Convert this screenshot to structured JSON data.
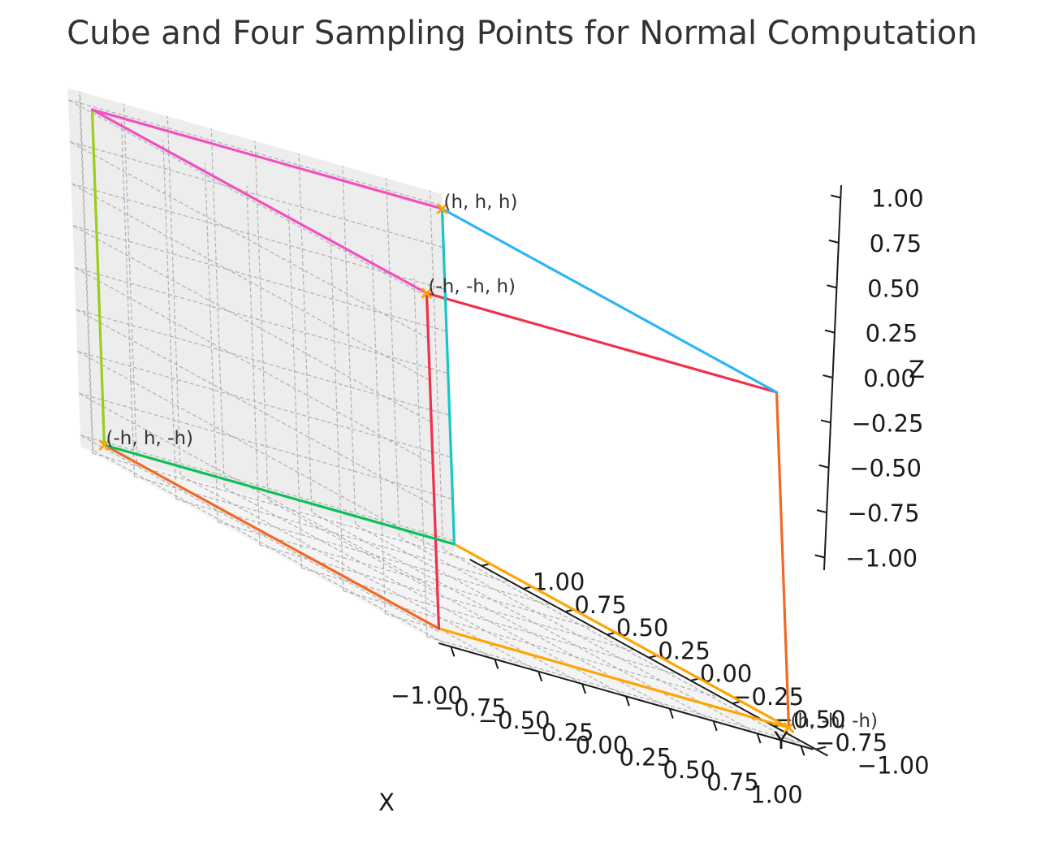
{
  "chart_data": {
    "type": "3d-line",
    "title": "Cube and Four Sampling Points for Normal Computation",
    "xlabel": "X",
    "ylabel": "Y",
    "zlabel": "Z",
    "xlim": [
      -1.0,
      1.0
    ],
    "ylim": [
      -1.0,
      1.0
    ],
    "zlim": [
      -1.0,
      1.0
    ],
    "grid": true,
    "x_ticks": [
      "−1.00",
      "−0.75",
      "−0.50",
      "−0.25",
      "0.00",
      "0.25",
      "0.50",
      "0.75",
      "1.00"
    ],
    "y_ticks": [
      "−1.00",
      "−0.75",
      "−0.50",
      "−0.25",
      "0.00",
      "0.25",
      "0.50",
      "0.75",
      "1.00"
    ],
    "z_ticks": [
      "−1.00",
      "−0.75",
      "−0.50",
      "−0.25",
      "0.00",
      "0.25",
      "0.50",
      "0.75",
      "1.00"
    ],
    "h": 1.0,
    "edges": [
      {
        "from": [
          -1,
          -1,
          -1
        ],
        "to": [
          1,
          -1,
          -1
        ],
        "color": "#ffa500"
      },
      {
        "from": [
          -1,
          -1,
          -1
        ],
        "to": [
          -1,
          1,
          -1
        ],
        "color": "#f06925"
      },
      {
        "from": [
          -1,
          -1,
          -1
        ],
        "to": [
          -1,
          -1,
          1
        ],
        "color": "#f0304c"
      },
      {
        "from": [
          1,
          -1,
          -1
        ],
        "to": [
          1,
          1,
          -1
        ],
        "color": "#ffa500"
      },
      {
        "from": [
          1,
          -1,
          -1
        ],
        "to": [
          1,
          -1,
          1
        ],
        "color": "#f06925"
      },
      {
        "from": [
          -1,
          1,
          -1
        ],
        "to": [
          1,
          1,
          -1
        ],
        "color": "#09c05a"
      },
      {
        "from": [
          -1,
          1,
          -1
        ],
        "to": [
          -1,
          1,
          1
        ],
        "color": "#9ccc1c"
      },
      {
        "from": [
          -1,
          -1,
          1
        ],
        "to": [
          1,
          -1,
          1
        ],
        "color": "#f0304c"
      },
      {
        "from": [
          -1,
          -1,
          1
        ],
        "to": [
          -1,
          1,
          1
        ],
        "color": "#f050c0"
      },
      {
        "from": [
          1,
          1,
          -1
        ],
        "to": [
          1,
          1,
          1
        ],
        "color": "#15c8c8"
      },
      {
        "from": [
          1,
          -1,
          1
        ],
        "to": [
          1,
          1,
          1
        ],
        "color": "#2bb5f5"
      },
      {
        "from": [
          -1,
          1,
          1
        ],
        "to": [
          1,
          1,
          1
        ],
        "color": "#f050c0"
      }
    ],
    "sampling_points": [
      {
        "label": "(h, -h, -h)",
        "coords": [
          1,
          -1,
          -1
        ]
      },
      {
        "label": "(-h, h, -h)",
        "coords": [
          -1,
          1,
          -1
        ]
      },
      {
        "label": "(-h, -h, h)",
        "coords": [
          -1,
          -1,
          1
        ]
      },
      {
        "label": "(h, h, h)",
        "coords": [
          1,
          1,
          1
        ]
      }
    ],
    "marker": "x",
    "marker_color": "#ffa500"
  }
}
